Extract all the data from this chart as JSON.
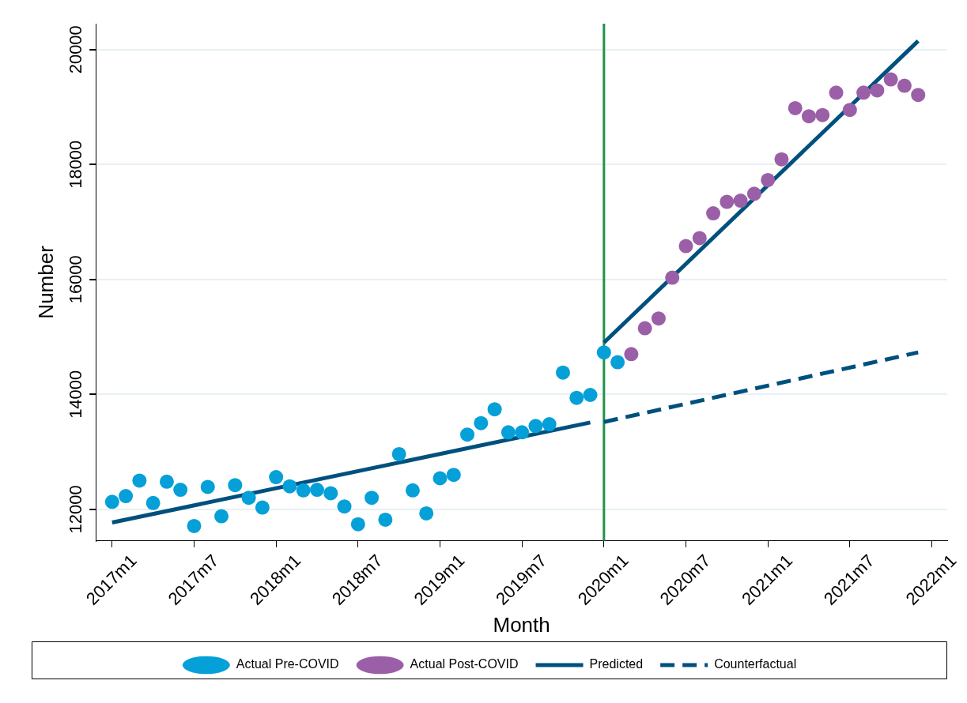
{
  "chart_data": {
    "type": "scatter",
    "xlabel": "Month",
    "ylabel": "Number",
    "xlim": [
      "2016-11-26",
      "2022-02-05"
    ],
    "xticks": [
      {
        "value": "2017-01",
        "label": "2017m1"
      },
      {
        "value": "2017-07",
        "label": "2017m7"
      },
      {
        "value": "2018-01",
        "label": "2018m1"
      },
      {
        "value": "2018-07",
        "label": "2018m7"
      },
      {
        "value": "2019-01",
        "label": "2019m1"
      },
      {
        "value": "2019-07",
        "label": "2019m7"
      },
      {
        "value": "2020-01",
        "label": "2020m1"
      },
      {
        "value": "2020-07",
        "label": "2020m7"
      },
      {
        "value": "2021-01",
        "label": "2021m1"
      },
      {
        "value": "2021-07",
        "label": "2021m7"
      },
      {
        "value": "2022-01",
        "label": "2022m1"
      }
    ],
    "ylim": [
      11450,
      20450
    ],
    "yticks": [
      12000,
      14000,
      16000,
      18000,
      20000
    ],
    "grid": "y",
    "legend": "bottom",
    "marker": "circle",
    "series": [
      {
        "name": "Actual Pre-COVID",
        "color": "#05a0d8",
        "x": [
          "2017-01",
          "2017-02",
          "2017-03",
          "2017-04",
          "2017-05",
          "2017-06",
          "2017-07",
          "2017-08",
          "2017-09",
          "2017-10",
          "2017-11",
          "2017-12",
          "2018-01",
          "2018-02",
          "2018-03",
          "2018-04",
          "2018-05",
          "2018-06",
          "2018-07",
          "2018-08",
          "2018-09",
          "2018-10",
          "2018-11",
          "2018-12",
          "2019-01",
          "2019-02",
          "2019-03",
          "2019-04",
          "2019-05",
          "2019-06",
          "2019-07",
          "2019-08",
          "2019-09",
          "2019-10",
          "2019-11",
          "2019-12",
          "2020-01",
          "2020-02"
        ],
        "values": [
          12130,
          12230,
          12500,
          12110,
          12480,
          12340,
          11710,
          12390,
          11880,
          12420,
          12200,
          12030,
          12560,
          12400,
          12330,
          12340,
          12280,
          12050,
          11740,
          12200,
          11820,
          12960,
          12330,
          11930,
          12540,
          12600,
          13300,
          13500,
          13740,
          13340,
          13340,
          13450,
          13480,
          14380,
          13940,
          13990,
          14730,
          14560
        ]
      },
      {
        "name": "Actual Post-COVID",
        "color": "#9b5fa8",
        "x": [
          "2020-03",
          "2020-04",
          "2020-05",
          "2020-06",
          "2020-07",
          "2020-08",
          "2020-09",
          "2020-10",
          "2020-11",
          "2020-12",
          "2021-01",
          "2021-02",
          "2021-03",
          "2021-04",
          "2021-05",
          "2021-06",
          "2021-07",
          "2021-08",
          "2021-09",
          "2021-10",
          "2021-11",
          "2021-12"
        ],
        "values": [
          14700,
          15150,
          15320,
          16030,
          16580,
          16720,
          17150,
          17350,
          17370,
          17490,
          17730,
          18090,
          18980,
          18840,
          18860,
          19250,
          18950,
          19250,
          19290,
          19480,
          19370,
          19210
        ]
      },
      {
        "name": "Predicted",
        "type": "line",
        "color": "#00507e",
        "line_style": "solid",
        "marker": "none",
        "x": [
          "2017-01",
          "2019-12"
        ],
        "values": [
          11770,
          13510
        ]
      },
      {
        "type": "line",
        "color": "#00507e",
        "line_style": "solid",
        "marker": "none",
        "x": [
          "2020-01",
          "2021-12"
        ],
        "values": [
          14900,
          20150
        ]
      },
      {
        "name": "Counterfactual",
        "type": "line",
        "color": "#00507e",
        "line_style": "dashed",
        "marker": "none",
        "x": [
          "2020-01",
          "2021-12"
        ],
        "values": [
          13520,
          14730
        ]
      }
    ],
    "ref_lines": [
      {
        "axis": "x",
        "value": "2020-01",
        "color": "#1e9447"
      }
    ]
  }
}
